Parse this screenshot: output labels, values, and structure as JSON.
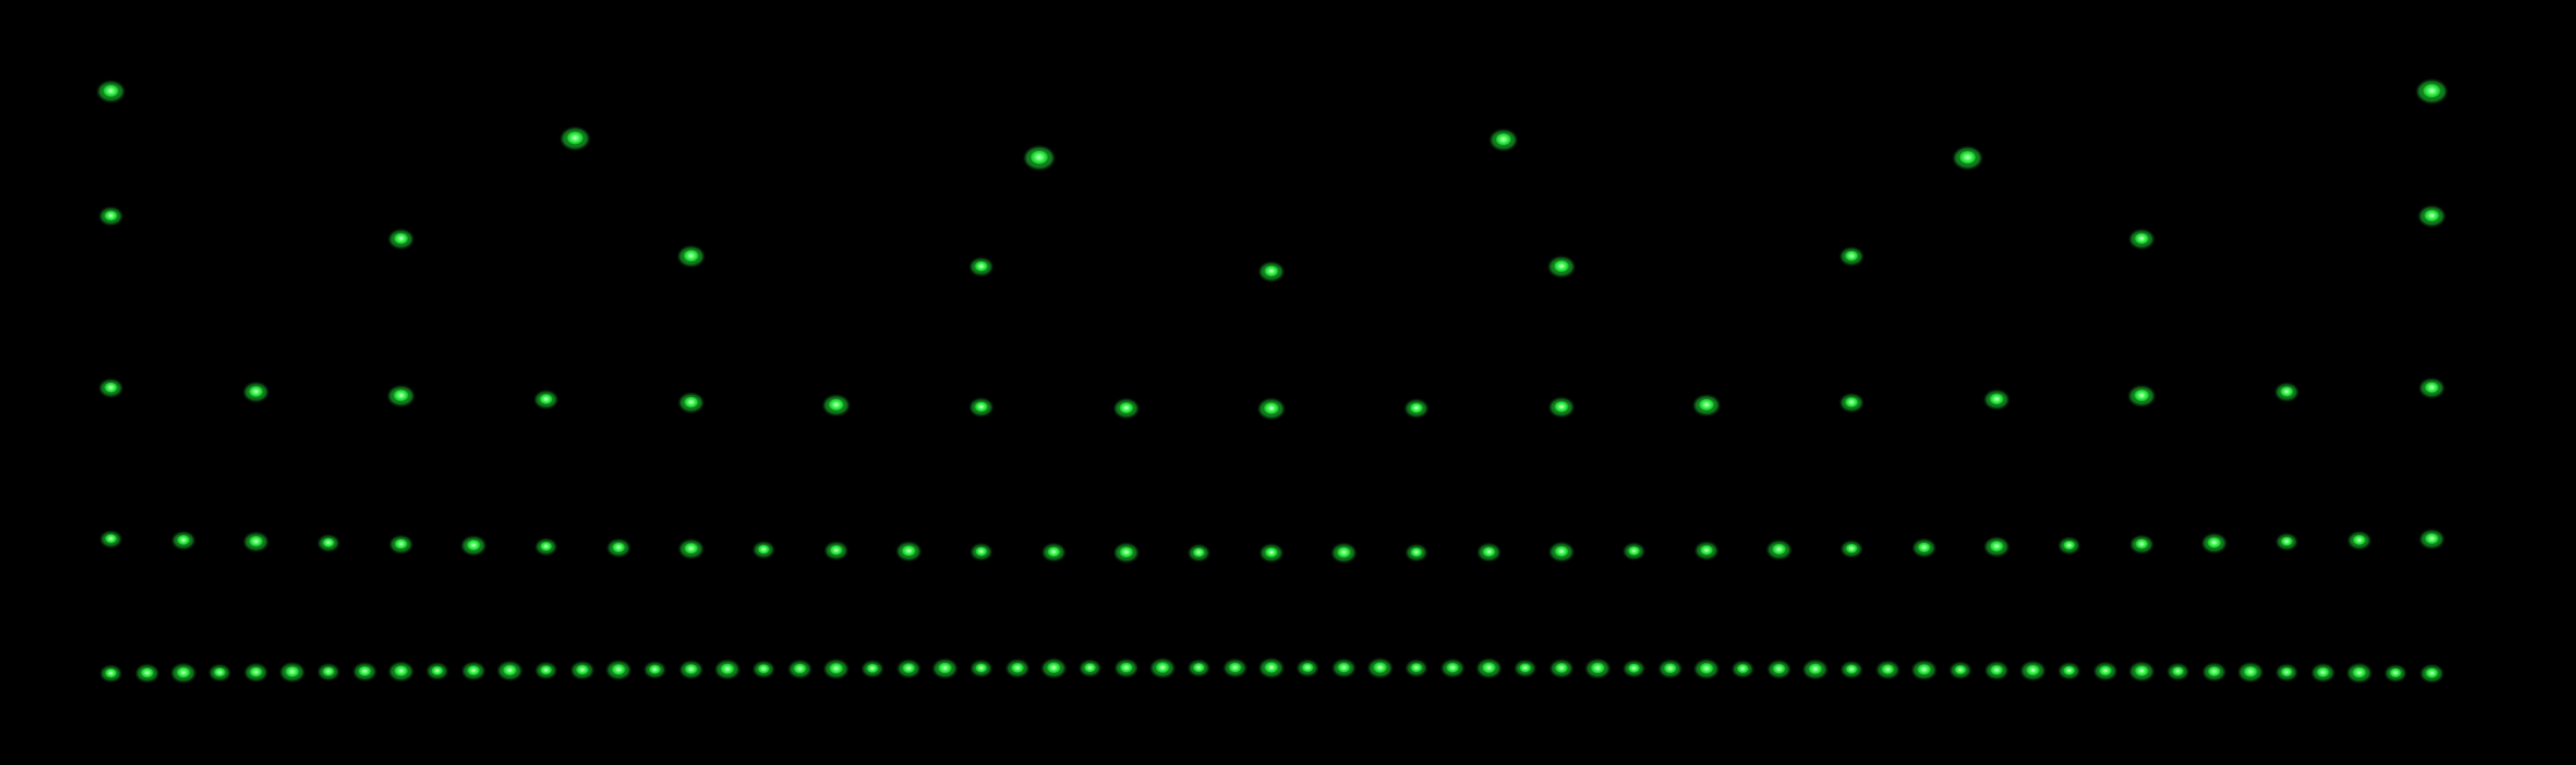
{
  "image": {
    "description_kind": "fluorescence photograph",
    "background_color": "#000000",
    "spot_color": "#22e83a",
    "spot_highlight_color": "#c8ffc8",
    "rows": [
      {
        "name": "row-1",
        "spot_count": 6
      },
      {
        "name": "row-2",
        "spot_count": 9
      },
      {
        "name": "row-3",
        "spot_count": 17
      },
      {
        "name": "row-4",
        "spot_count": 33
      },
      {
        "name": "row-5",
        "spot_count": 65
      }
    ]
  }
}
